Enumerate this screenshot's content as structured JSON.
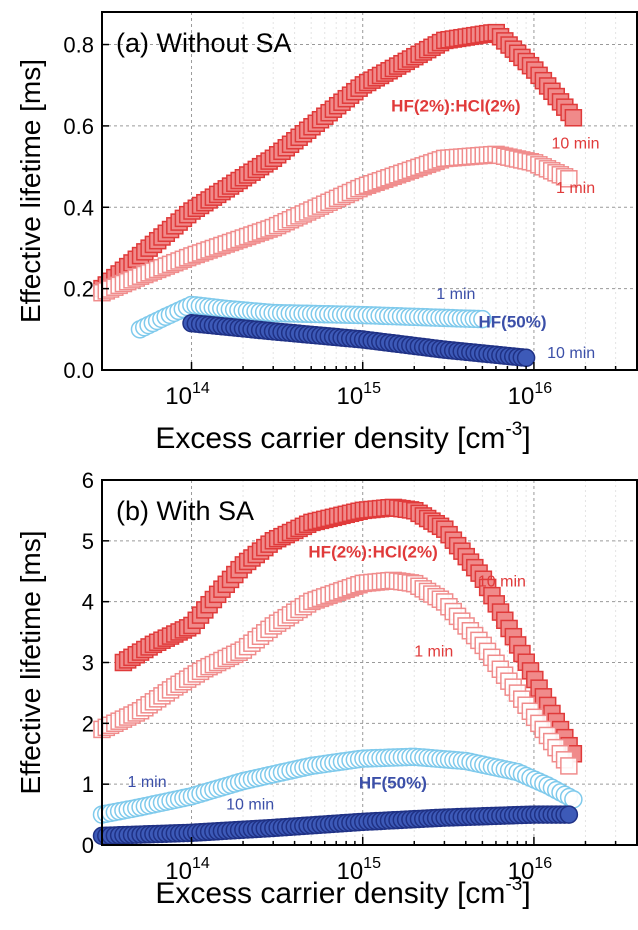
{
  "chart_data": [
    {
      "type": "scatter",
      "panel_label": "(a) Without SA",
      "xlabel": "Excess carrier density [cm",
      "xlabel_sup": "-3",
      "xlabel_close": "]",
      "ylabel": "Effective lifetime [ms]",
      "x_scale": "log",
      "xlim": [
        30000000000000.0,
        4e+16
      ],
      "ylim": [
        0,
        0.88
      ],
      "x_ticks": [
        {
          "label": "10",
          "exp": "14"
        },
        {
          "label": "10",
          "exp": "15"
        },
        {
          "label": "10",
          "exp": "16"
        }
      ],
      "y_ticks": [
        "0.0",
        "0.2",
        "0.4",
        "0.6",
        "0.8"
      ],
      "grid": true,
      "annotations": [
        {
          "text": "HF(2%):HCl(2%)",
          "x": 3500000000000000.0,
          "y": 0.635,
          "color": "#e03a3a",
          "bold": true
        },
        {
          "text": "10 min",
          "x": 1.75e+16,
          "y": 0.545,
          "color": "#e03a3a",
          "bold": false
        },
        {
          "text": "1 min",
          "x": 1.75e+16,
          "y": 0.435,
          "color": "#e03a3a",
          "bold": false
        },
        {
          "text": "1 min",
          "x": 3500000000000000.0,
          "y": 0.175,
          "color": "#3b4fa8",
          "bold": false
        },
        {
          "text": "HF(50%)",
          "x": 7500000000000000.0,
          "y": 0.105,
          "color": "#3b4fa8",
          "bold": true
        },
        {
          "text": "10 min",
          "x": 1.65e+16,
          "y": 0.03,
          "color": "#3b4fa8",
          "bold": false
        }
      ],
      "series": [
        {
          "marker": "square",
          "fill": "#f08a8a",
          "stroke": "#e03a3a",
          "filled": true,
          "x": [
            30000000000000.0,
            50000000000000.0,
            100000000000000.0,
            300000000000000.0,
            1000000000000000.0,
            3000000000000000.0,
            6000000000000000.0,
            1e+16,
            1.7e+16
          ],
          "y": [
            0.2,
            0.28,
            0.39,
            0.52,
            0.7,
            0.81,
            0.83,
            0.74,
            0.62
          ]
        },
        {
          "marker": "square",
          "fill": "#ffffff",
          "stroke": "#f08c8c",
          "filled": false,
          "x": [
            30000000000000.0,
            50000000000000.0,
            100000000000000.0,
            300000000000000.0,
            1000000000000000.0,
            3000000000000000.0,
            6000000000000000.0,
            1e+16,
            1.6e+16
          ],
          "y": [
            0.19,
            0.23,
            0.28,
            0.35,
            0.45,
            0.52,
            0.53,
            0.51,
            0.47
          ]
        },
        {
          "marker": "circle",
          "fill": "#ffffff",
          "stroke": "#7fcaec",
          "filled": false,
          "x": [
            50000000000000.0,
            70000000000000.0,
            100000000000000.0,
            160000000000000.0,
            300000000000000.0,
            1000000000000000.0,
            3000000000000000.0,
            5000000000000000.0
          ],
          "y": [
            0.1,
            0.13,
            0.16,
            0.15,
            0.14,
            0.135,
            0.128,
            0.125
          ]
        },
        {
          "marker": "circle",
          "fill": "#3d5ab8",
          "stroke": "#1f3185",
          "filled": true,
          "x": [
            100000000000000.0,
            300000000000000.0,
            1000000000000000.0,
            3000000000000000.0,
            9000000000000000.0
          ],
          "y": [
            0.115,
            0.095,
            0.075,
            0.05,
            0.03
          ]
        }
      ]
    },
    {
      "type": "scatter",
      "panel_label": "(b) With SA",
      "xlabel": "Excess carrier density [cm",
      "xlabel_sup": "-3",
      "xlabel_close": "]",
      "ylabel": "Effective lifetime [ms]",
      "x_scale": "log",
      "xlim": [
        30000000000000.0,
        4e+16
      ],
      "ylim": [
        0,
        6
      ],
      "x_ticks": [
        {
          "label": "10",
          "exp": "14"
        },
        {
          "label": "10",
          "exp": "15"
        },
        {
          "label": "10",
          "exp": "16"
        }
      ],
      "y_ticks": [
        "0",
        "1",
        "2",
        "3",
        "4",
        "5",
        "6"
      ],
      "grid": true,
      "annotations": [
        {
          "text": "HF(2%):HCl(2%)",
          "x": 1150000000000000.0,
          "y": 4.73,
          "color": "#e03a3a",
          "bold": true
        },
        {
          "text": "10 min",
          "x": 6500000000000000.0,
          "y": 4.25,
          "color": "#e03a3a",
          "bold": false
        },
        {
          "text": "1 min",
          "x": 2600000000000000.0,
          "y": 3.1,
          "color": "#e03a3a",
          "bold": false
        },
        {
          "text": "1 min",
          "x": 55000000000000.0,
          "y": 0.95,
          "color": "#3b4fa8",
          "bold": false
        },
        {
          "text": "HF(50%)",
          "x": 1500000000000000.0,
          "y": 0.93,
          "color": "#3b4fa8",
          "bold": true
        },
        {
          "text": "10 min",
          "x": 220000000000000.0,
          "y": 0.58,
          "color": "#3b4fa8",
          "bold": false
        }
      ],
      "series": [
        {
          "marker": "square",
          "fill": "#f08a8a",
          "stroke": "#e03a3a",
          "filled": true,
          "x": [
            40000000000000.0,
            60000000000000.0,
            100000000000000.0,
            150000000000000.0,
            200000000000000.0,
            300000000000000.0,
            500000000000000.0,
            1000000000000000.0,
            1500000000000000.0,
            2000000000000000.0,
            3000000000000000.0,
            5000000000000000.0,
            8000000000000000.0,
            1.2e+16,
            1.7e+16
          ],
          "y": [
            3.0,
            3.3,
            3.6,
            4.2,
            4.6,
            5.0,
            5.3,
            5.5,
            5.55,
            5.5,
            5.2,
            4.4,
            3.3,
            2.3,
            1.5
          ]
        },
        {
          "marker": "square",
          "fill": "#ffffff",
          "stroke": "#f08c8c",
          "filled": false,
          "x": [
            30000000000000.0,
            50000000000000.0,
            80000000000000.0,
            120000000000000.0,
            200000000000000.0,
            300000000000000.0,
            500000000000000.0,
            1000000000000000.0,
            1500000000000000.0,
            2000000000000000.0,
            3000000000000000.0,
            5000000000000000.0,
            8000000000000000.0,
            1.2e+16,
            1.6e+16
          ],
          "y": [
            1.9,
            2.2,
            2.6,
            2.9,
            3.2,
            3.6,
            4.0,
            4.3,
            4.35,
            4.3,
            4.0,
            3.3,
            2.5,
            1.8,
            1.3
          ]
        },
        {
          "marker": "circle",
          "fill": "#ffffff",
          "stroke": "#7fcaec",
          "filled": false,
          "x": [
            30000000000000.0,
            50000000000000.0,
            100000000000000.0,
            200000000000000.0,
            500000000000000.0,
            1000000000000000.0,
            2000000000000000.0,
            4000000000000000.0,
            8000000000000000.0,
            1.2e+16,
            1.7e+16
          ],
          "y": [
            0.5,
            0.62,
            0.8,
            1.05,
            1.3,
            1.42,
            1.45,
            1.38,
            1.2,
            0.98,
            0.75
          ]
        },
        {
          "marker": "circle",
          "fill": "#3d5ab8",
          "stroke": "#1f3185",
          "filled": true,
          "x": [
            30000000000000.0,
            100000000000000.0,
            300000000000000.0,
            1000000000000000.0,
            3000000000000000.0,
            1e+16,
            1.6e+16
          ],
          "y": [
            0.15,
            0.2,
            0.28,
            0.38,
            0.45,
            0.5,
            0.5
          ]
        }
      ]
    }
  ]
}
